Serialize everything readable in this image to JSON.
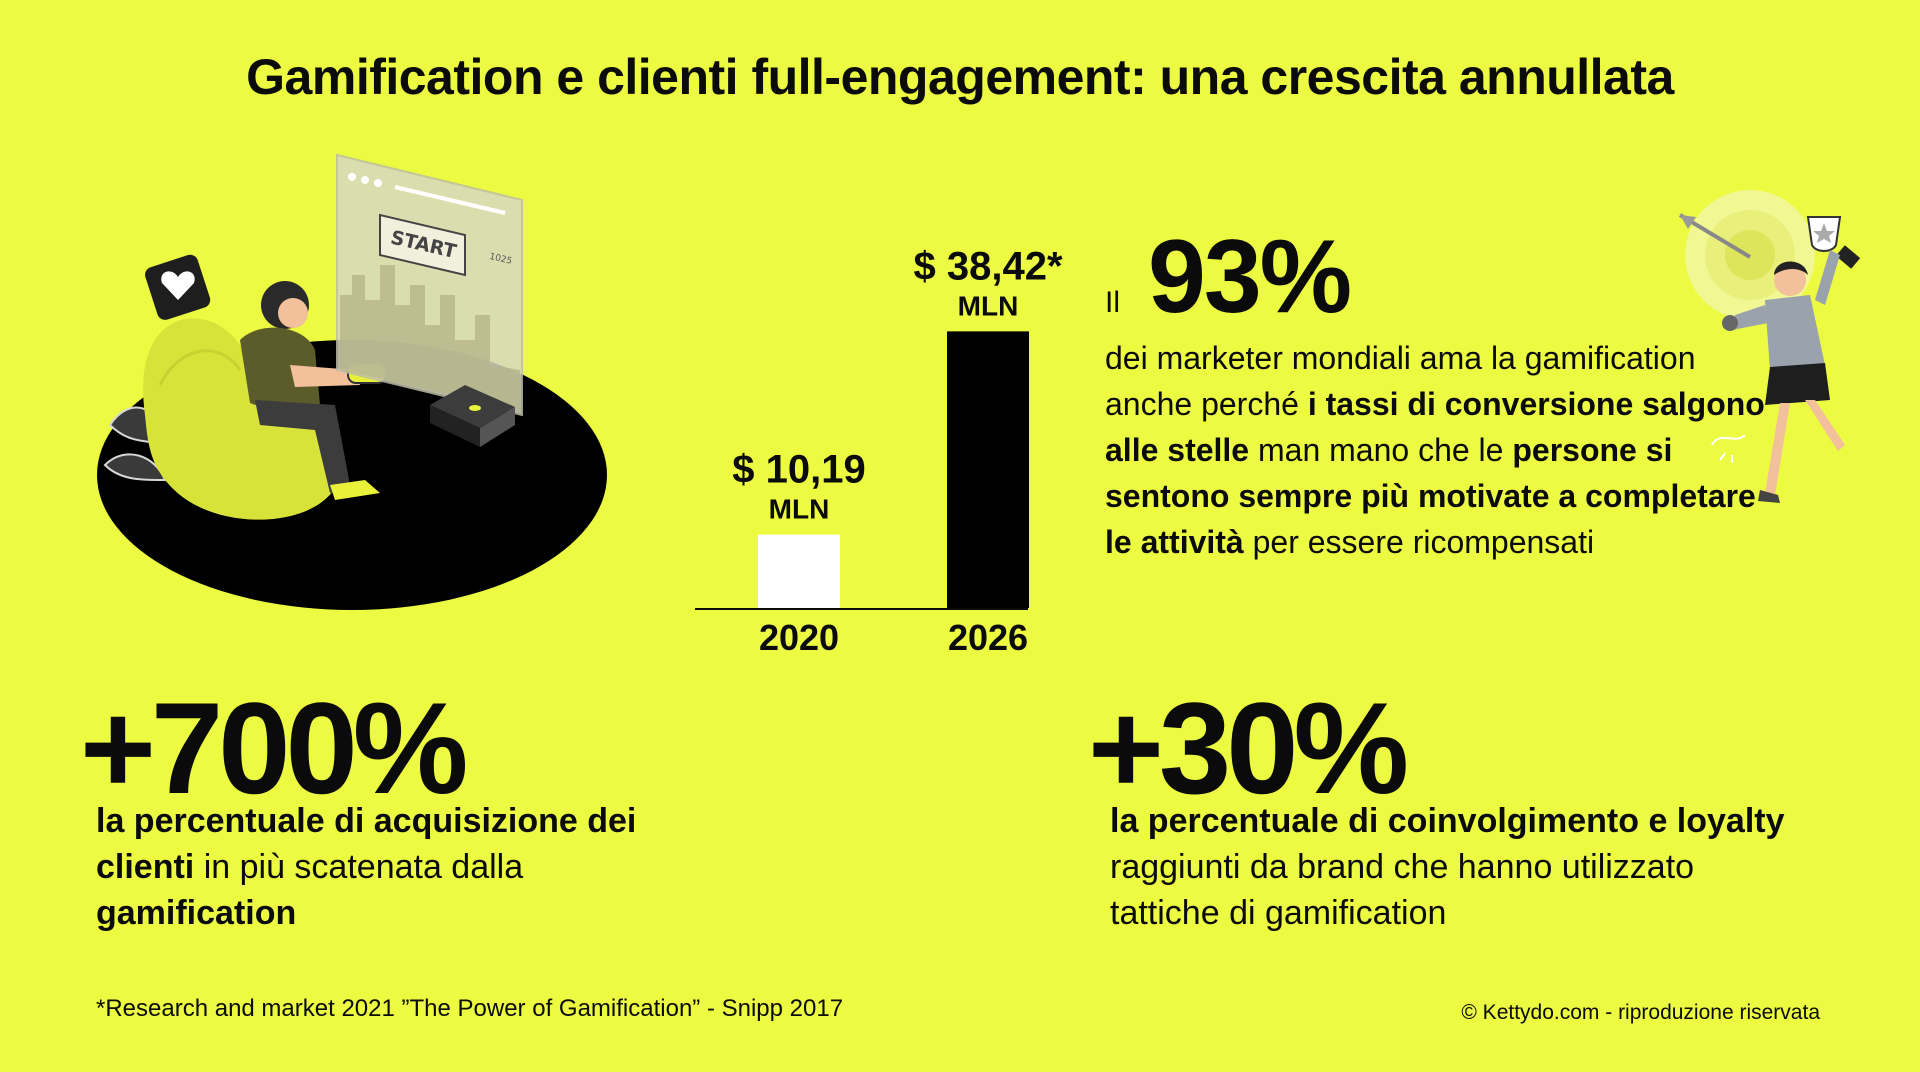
{
  "title": "Gamification e clienti full-engagement: una crescita annullata",
  "illustration_left": {
    "screen_text": "START",
    "screen_small": "1025"
  },
  "chart_data": {
    "type": "bar",
    "categories": [
      "2020",
      "2026"
    ],
    "values": [
      10.19,
      38.42
    ],
    "value_labels": [
      "$ 10,19",
      "$ 38,42*"
    ],
    "unit_label": "MLN",
    "bar_colors": [
      "#ffffff",
      "#000000"
    ],
    "ylim": [
      0,
      40
    ],
    "title": "",
    "xlabel": "",
    "ylabel": ""
  },
  "stat93": {
    "prefix": "Il",
    "value": "93%",
    "text": [
      {
        "t": "dei marketer mondiali ama la gamification anche perché ",
        "b": false
      },
      {
        "t": "i tassi di conversione salgono alle stelle",
        "b": true
      },
      {
        "t": " man mano che le ",
        "b": false
      },
      {
        "t": "persone si sentono sempre più motivate a completare le attività",
        "b": true
      },
      {
        "t": " per essere  ricompensati",
        "b": false
      }
    ]
  },
  "stat700": {
    "value": "+700%",
    "text": [
      {
        "t": "la percentuale di acquisizione dei clienti",
        "b": true
      },
      {
        "t": " in più scatenata  dalla ",
        "b": false
      },
      {
        "t": "gamification",
        "b": true
      }
    ]
  },
  "stat30": {
    "value": "+30%",
    "text": [
      {
        "t": "la percentuale di coinvolgimento e loyalty",
        "b": true
      },
      {
        "t": " raggiunti da brand che hanno utilizzato tattiche di gamification",
        "b": false
      }
    ]
  },
  "footnote": "*Research and market 2021 ”The Power of Gamification” - Snipp 2017",
  "copyright": "© Kettydo.com - riproduzione riservata",
  "colors": {
    "background": "#ecfa42",
    "text": "#0b0b0b",
    "accent_dark": "#000000",
    "accent_light": "#ffffff"
  }
}
